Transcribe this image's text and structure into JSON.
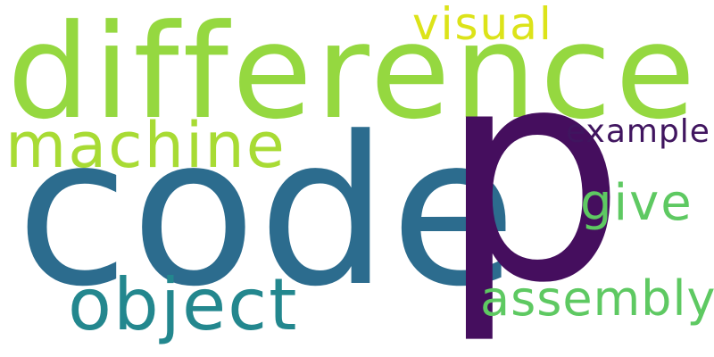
{
  "words": {
    "difference": {
      "text": "difference",
      "color": "#95d840"
    },
    "visual": {
      "text": "visual",
      "color": "#dce319"
    },
    "machine": {
      "text": "machine",
      "color": "#a8db34"
    },
    "code": {
      "text": "code",
      "color": "#2c6c8e"
    },
    "p": {
      "text": "p",
      "color": "#450e5e"
    },
    "example": {
      "text": "example",
      "color": "#40155f"
    },
    "give": {
      "text": "give",
      "color": "#5ec962"
    },
    "object": {
      "text": "object",
      "color": "#23878e"
    },
    "assembly": {
      "text": "assembly",
      "color": "#5ec962"
    }
  },
  "background_color": "#ffffff"
}
